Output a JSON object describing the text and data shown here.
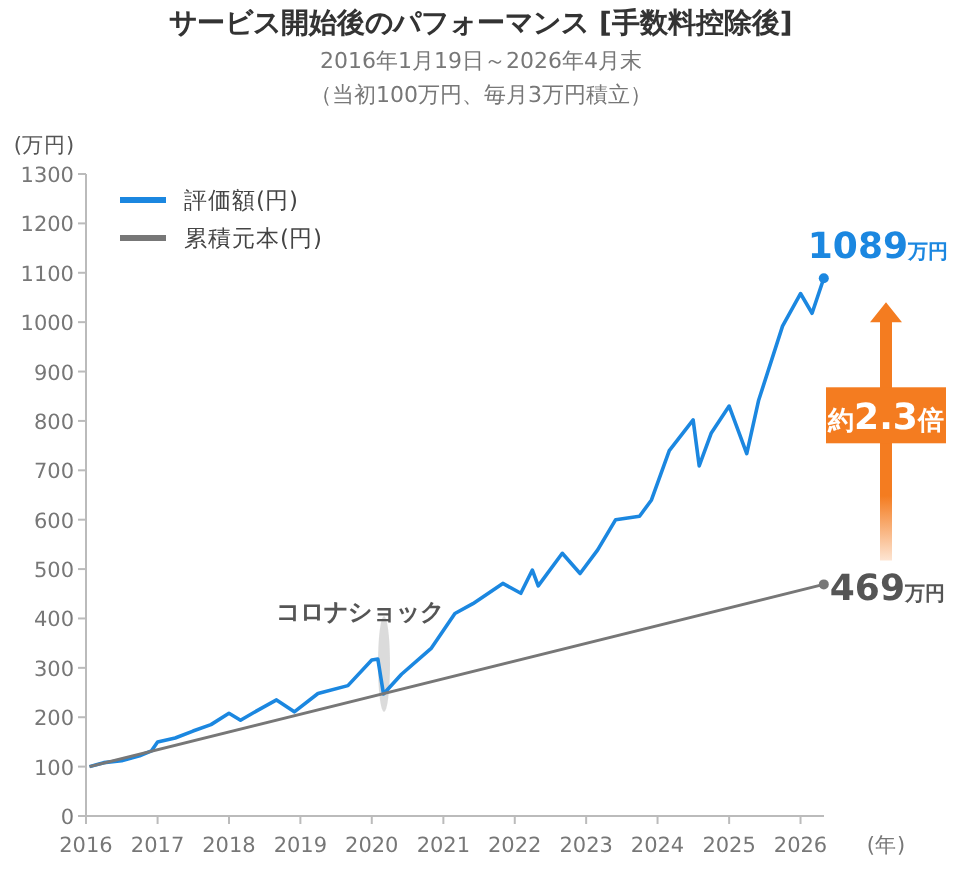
{
  "chart_data": {
    "type": "line",
    "title": "サービス開始後のパフォーマンス [手数料控除後]",
    "subtitle": "2016年1月19日～2026年4月末",
    "ylabel": "(万円)",
    "xlabel": "(年)",
    "series": [
      {
        "name": "評価額(円)",
        "color": "#1b87e0",
        "x": [
          "2016-01-19",
          "2016-04",
          "2016-07",
          "2016-10",
          "2016-12",
          "2017-01",
          "2017-04",
          "2017-07",
          "2017-10",
          "2018-01",
          "2018-03",
          "2018-06",
          "2018-09",
          "2018-12",
          "2019-04",
          "2019-09",
          "2020-01",
          "2020-02",
          "2020-03",
          "2020-06",
          "2020-11",
          "2021-03",
          "2021-06",
          "2021-11",
          "2022-02",
          "2022-04",
          "2022-05",
          "2022-09",
          "2022-12",
          "2023-03",
          "2023-06",
          "2023-10",
          "2023-12",
          "2024-03",
          "2024-07",
          "2024-08",
          "2024-10",
          "2025-01",
          "2025-04",
          "2025-06",
          "2025-10",
          "2026-01",
          "2026-03",
          "2026-04-30"
        ],
        "values": [
          100,
          108,
          112,
          122,
          132,
          150,
          158,
          172,
          185,
          208,
          194,
          215,
          235,
          211,
          248,
          264,
          316,
          318,
          247,
          287,
          340,
          410,
          430,
          471,
          451,
          498,
          466,
          532,
          491,
          539,
          600,
          607,
          640,
          740,
          802,
          709,
          775,
          830,
          734,
          842,
          992,
          1058,
          1018,
          1089
        ],
        "value_labels": [
          null,
          null,
          null,
          null,
          null,
          null,
          null,
          null,
          null,
          null,
          null,
          null,
          null,
          null,
          null,
          null,
          null,
          null,
          null,
          null,
          null,
          null,
          null,
          null,
          null,
          null,
          null,
          null,
          null,
          null,
          null,
          null,
          null,
          null,
          null,
          null,
          null,
          null,
          null,
          null,
          null,
          null,
          null,
          "1089万円"
        ]
      },
      {
        "name": "累積元本(円)",
        "color": "#777777",
        "x": [
          "2016-01-19",
          "2026-04-30"
        ],
        "values": [
          100,
          469
        ],
        "value_labels": [
          null,
          "469万円"
        ]
      }
    ],
    "xlim": [
      "2016-01-01",
      "2026-05-01"
    ],
    "xticks": [
      {
        "value": "2016-01-01",
        "label": "2016"
      },
      {
        "value": "2017-01-01",
        "label": "2017"
      },
      {
        "value": "2018-01-01",
        "label": "2018"
      },
      {
        "value": "2019-01-01",
        "label": "2019"
      },
      {
        "value": "2020-01-01",
        "label": "2020"
      },
      {
        "value": "2021-01-01",
        "label": "2021"
      },
      {
        "value": "2022-01-01",
        "label": "2022"
      },
      {
        "value": "2023-01-01",
        "label": "2023"
      },
      {
        "value": "2024-01-01",
        "label": "2024"
      },
      {
        "value": "2025-01-01",
        "label": "2025"
      },
      {
        "value": "2026-01-01",
        "label": "2026"
      }
    ],
    "ylim": [
      0,
      1300
    ],
    "yticks": [
      0,
      100,
      200,
      300,
      400,
      500,
      600,
      700,
      800,
      900,
      1000,
      1100,
      1200,
      1300
    ],
    "annotations": [
      "（当初100万円、毎月3万円積立）",
      "コロナショック",
      "約2.3倍"
    ],
    "legend": "top left",
    "grid": false,
    "line_style": "solid"
  }
}
